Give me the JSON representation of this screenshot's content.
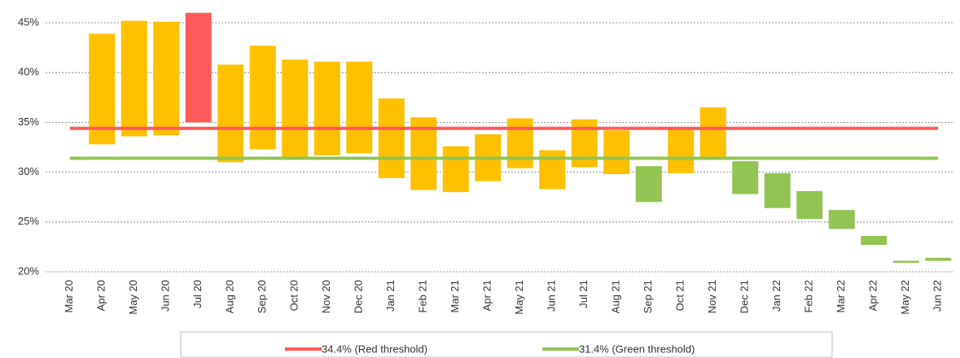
{
  "chart_data": {
    "type": "floating-bar",
    "categories": [
      "Mar 20",
      "Apr 20",
      "May 20",
      "Jun 20",
      "Jul 20",
      "Aug 20",
      "Sep 20",
      "Oct 20",
      "Nov 20",
      "Dec 20",
      "Jan 21",
      "Feb 21",
      "Mar 21",
      "Apr 21",
      "May 21",
      "Jun 21",
      "Jul 21",
      "Aug 21",
      "Sep 21",
      "Oct 21",
      "Nov 21",
      "Dec 21",
      "Jan 22",
      "Feb 22",
      "Mar 22",
      "Apr 22",
      "May 22",
      "Jun 22"
    ],
    "low": [
      null,
      32.8,
      33.6,
      33.7,
      35.0,
      31.0,
      32.3,
      31.5,
      31.7,
      31.9,
      29.4,
      28.2,
      28.0,
      29.1,
      30.4,
      28.3,
      30.5,
      29.8,
      27.0,
      29.9,
      31.4,
      27.8,
      26.4,
      25.3,
      24.3,
      22.7,
      20.9,
      21.1
    ],
    "high": [
      null,
      43.9,
      45.2,
      45.1,
      46.0,
      40.8,
      42.7,
      41.3,
      41.1,
      41.1,
      37.4,
      35.5,
      32.6,
      33.8,
      35.4,
      32.2,
      35.3,
      34.2,
      30.6,
      34.4,
      36.5,
      31.1,
      29.9,
      28.1,
      26.2,
      23.6,
      21.1,
      21.4
    ],
    "colors": [
      null,
      "#ffc000",
      "#ffc000",
      "#ffc000",
      "#ff5a5a",
      "#ffc000",
      "#ffc000",
      "#ffc000",
      "#ffc000",
      "#ffc000",
      "#ffc000",
      "#ffc000",
      "#ffc000",
      "#ffc000",
      "#ffc000",
      "#ffc000",
      "#ffc000",
      "#ffc000",
      "#92c353",
      "#ffc000",
      "#ffc000",
      "#92c353",
      "#92c353",
      "#92c353",
      "#92c353",
      "#92c353",
      "#92c353",
      "#92c353"
    ],
    "thresholds": [
      {
        "name": "34.4% (Red threshold)",
        "color": "#ff5a5a",
        "value": 34.4
      },
      {
        "name": "31.4% (Green threshold)",
        "color": "#92c353",
        "value": 31.4
      }
    ],
    "ylim": [
      20,
      46
    ],
    "yticks": [
      {
        "value": 20,
        "label": "20%"
      },
      {
        "value": 25,
        "label": "25%"
      },
      {
        "value": 30,
        "label": "30%"
      },
      {
        "value": 35,
        "label": "35%"
      },
      {
        "value": 40,
        "label": "40%"
      },
      {
        "value": 45,
        "label": "45%"
      }
    ],
    "grid": true
  }
}
